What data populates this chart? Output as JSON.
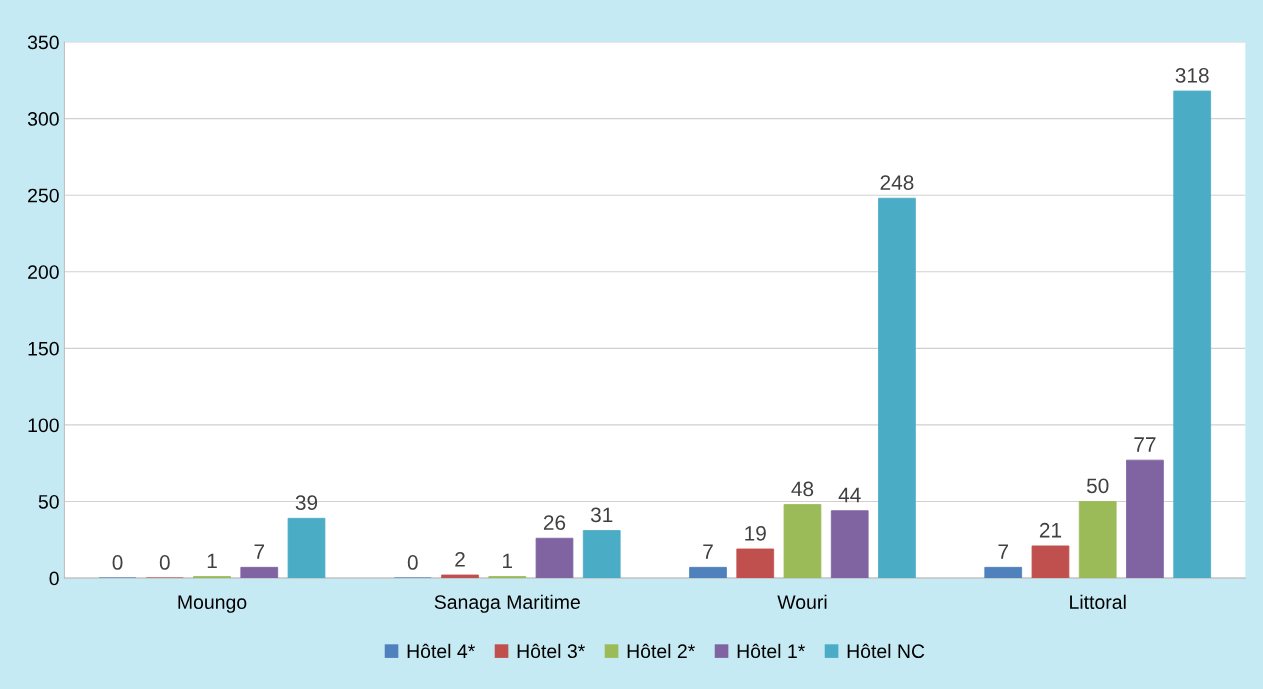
{
  "chart_data": {
    "type": "bar",
    "categories": [
      "Moungo",
      "Sanaga Maritime",
      "Wouri",
      "Littoral"
    ],
    "series": [
      {
        "name": "Hôtel 4*",
        "color": "#4f81bd",
        "values": [
          0,
          0,
          7,
          7
        ]
      },
      {
        "name": "Hôtel 3*",
        "color": "#c0504d",
        "values": [
          0,
          2,
          19,
          21
        ]
      },
      {
        "name": "Hôtel 2*",
        "color": "#9bbb59",
        "values": [
          1,
          1,
          48,
          50
        ]
      },
      {
        "name": "Hôtel 1*",
        "color": "#8064a2",
        "values": [
          7,
          26,
          44,
          77
        ]
      },
      {
        "name": "Hôtel NC",
        "color": "#4bacc6",
        "values": [
          39,
          31,
          248,
          318
        ]
      }
    ],
    "ylim": [
      0,
      350
    ],
    "yticks": [
      0,
      50,
      100,
      150,
      200,
      250,
      300,
      350
    ],
    "grid": "y",
    "legend": "bottom",
    "data_labels": true
  }
}
